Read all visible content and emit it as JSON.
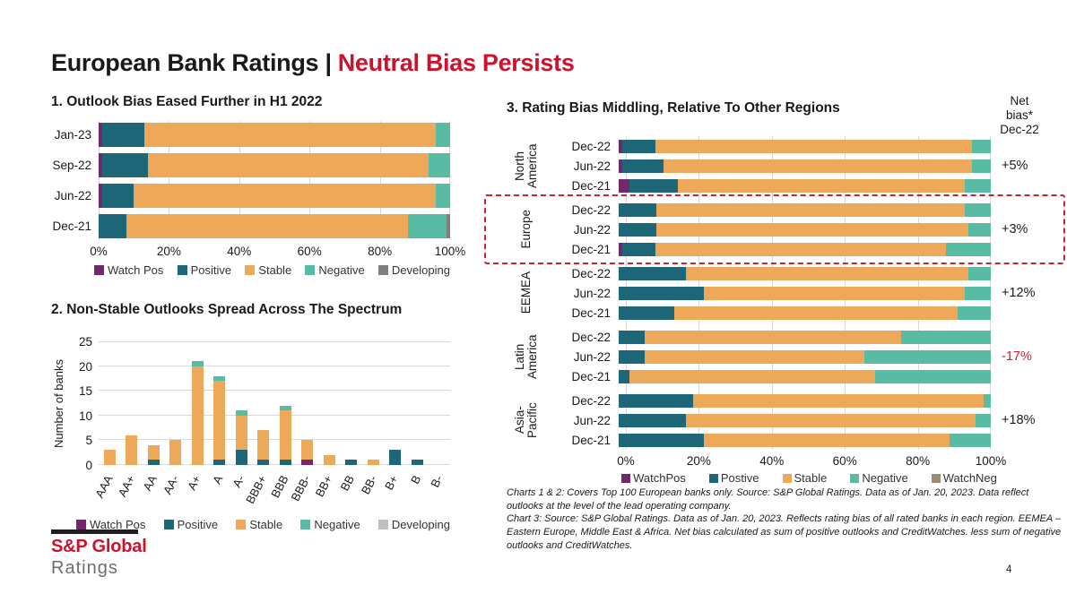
{
  "page": {
    "title_black": "European Bank Ratings |",
    "title_accent": "Neutral Bias Persists",
    "page_number": "4"
  },
  "colors": {
    "watch_pos": "#73286B",
    "positive": "#1E6779",
    "stable": "#EEA85A",
    "negative": "#5ABBA4",
    "developing": "#7F7F7F",
    "developing_light": "#BFBFBF",
    "watch_neg": "#9C8B72",
    "grid": "#D9D9D9",
    "accent_red": "#C9232D",
    "brand_red": "#D0112B"
  },
  "chart_data": [
    {
      "type": "bar",
      "orientation": "horizontal-stacked-100pct",
      "title": "1. Outlook Bias Eased Further in H1 2022",
      "categories": [
        "Jan-23",
        "Sep-22",
        "Jun-22",
        "Dec-21"
      ],
      "series": [
        {
          "name": "Watch Pos",
          "color_key": "watch_pos",
          "values": [
            1,
            1,
            1,
            0
          ]
        },
        {
          "name": "Positive",
          "color_key": "positive",
          "values": [
            12,
            13,
            9,
            8
          ]
        },
        {
          "name": "Stable",
          "color_key": "stable",
          "values": [
            83,
            80,
            86,
            80
          ]
        },
        {
          "name": "Negative",
          "color_key": "negative",
          "values": [
            4,
            6,
            4,
            11
          ]
        },
        {
          "name": "Developing",
          "color_key": "developing",
          "values": [
            0,
            0,
            0,
            1
          ]
        }
      ],
      "x_ticks": [
        "0%",
        "20%",
        "40%",
        "60%",
        "80%",
        "100%"
      ],
      "xlim": [
        0,
        100
      ],
      "grid": "vertical, every 20%",
      "legend_position": "bottom",
      "legend": [
        {
          "label": "Watch Pos",
          "color_key": "watch_pos"
        },
        {
          "label": "Positive",
          "color_key": "positive"
        },
        {
          "label": "Stable",
          "color_key": "stable"
        },
        {
          "label": "Negative",
          "color_key": "negative"
        },
        {
          "label": "Developing",
          "color_key": "developing"
        }
      ]
    },
    {
      "type": "bar",
      "orientation": "vertical-stacked",
      "title": "2. Non-Stable Outlooks Spread Across The Spectrum",
      "ylabel": "Number of banks",
      "y_ticks": [
        0,
        5,
        10,
        15,
        20,
        25
      ],
      "ylim": [
        0,
        25
      ],
      "categories": [
        "AAA",
        "AA+",
        "AA",
        "AA-",
        "A+",
        "A",
        "A-",
        "BBB+",
        "BBB",
        "BBB-",
        "BB+",
        "BB",
        "BB-",
        "B+",
        "B",
        "B-"
      ],
      "series": [
        {
          "name": "Watch Pos",
          "color_key": "watch_pos",
          "values": [
            0,
            0,
            0,
            0,
            0,
            0,
            0,
            0,
            0,
            1,
            0,
            0,
            0,
            0,
            0,
            0
          ]
        },
        {
          "name": "Positive",
          "color_key": "positive",
          "values": [
            0,
            0,
            1,
            0,
            0,
            1,
            3,
            1,
            1,
            0,
            0,
            1,
            0,
            3,
            1,
            0
          ]
        },
        {
          "name": "Stable",
          "color_key": "stable",
          "values": [
            3,
            6,
            3,
            5,
            20,
            16,
            7,
            6,
            10,
            4,
            2,
            0,
            1,
            0,
            0,
            0
          ]
        },
        {
          "name": "Negative",
          "color_key": "negative",
          "values": [
            0,
            0,
            0,
            0,
            1,
            1,
            1,
            0,
            1,
            0,
            0,
            0,
            0,
            0,
            0,
            0
          ]
        },
        {
          "name": "Developing",
          "color_key": "developing_light",
          "values": [
            0,
            0,
            0,
            0,
            0,
            0,
            0,
            0,
            0,
            0,
            0,
            0,
            0,
            0,
            0,
            0
          ]
        }
      ],
      "grid": "horizontal, every 5",
      "legend_position": "bottom",
      "legend": [
        {
          "label": "Watch Pos",
          "color_key": "watch_pos"
        },
        {
          "label": "Positive",
          "color_key": "positive"
        },
        {
          "label": "Stable",
          "color_key": "stable"
        },
        {
          "label": "Negative",
          "color_key": "negative"
        },
        {
          "label": "Developing",
          "color_key": "developing_light"
        }
      ]
    },
    {
      "type": "bar",
      "orientation": "horizontal-stacked-100pct",
      "title": "3. Rating Bias Middling, Relative To Other Regions",
      "net_bias_header": [
        "Net",
        "bias*",
        "Dec-22"
      ],
      "series": [
        {
          "name": "WatchPos",
          "color_key": "watch_pos"
        },
        {
          "name": "Postive",
          "color_key": "positive"
        },
        {
          "name": "Stable",
          "color_key": "stable"
        },
        {
          "name": "Negative",
          "color_key": "negative"
        },
        {
          "name": "WatchNeg",
          "color_key": "watch_neg"
        }
      ],
      "groups": [
        {
          "region": "North America",
          "net_bias": "+5%",
          "net_bias_negative": false,
          "highlighted": false,
          "rows": [
            {
              "label": "Dec-22",
              "values": [
                1,
                9,
                85,
                5,
                0
              ]
            },
            {
              "label": "Jun-22",
              "values": [
                1,
                11,
                83,
                5,
                0
              ]
            },
            {
              "label": "Dec-21",
              "values": [
                3,
                13,
                77,
                7,
                0
              ]
            }
          ]
        },
        {
          "region": "Europe",
          "net_bias": "+3%",
          "net_bias_negative": false,
          "highlighted": true,
          "rows": [
            {
              "label": "Dec-22",
              "values": [
                0,
                10,
                83,
                7,
                0
              ]
            },
            {
              "label": "Jun-22",
              "values": [
                0,
                10,
                84,
                6,
                0
              ]
            },
            {
              "label": "Dec-21",
              "values": [
                1,
                9,
                78,
                12,
                0
              ]
            }
          ]
        },
        {
          "region": "EEMEA",
          "net_bias": "+12%",
          "net_bias_negative": false,
          "highlighted": false,
          "rows": [
            {
              "label": "Dec-22",
              "values": [
                0,
                18,
                76,
                6,
                0
              ]
            },
            {
              "label": "Jun-22",
              "values": [
                0,
                23,
                70,
                7,
                0
              ]
            },
            {
              "label": "Dec-21",
              "values": [
                0,
                15,
                76,
                9,
                0
              ]
            }
          ]
        },
        {
          "region": "Latin America",
          "net_bias": "-17%",
          "net_bias_negative": true,
          "highlighted": false,
          "rows": [
            {
              "label": "Dec-22",
              "values": [
                0,
                7,
                69,
                24,
                0
              ]
            },
            {
              "label": "Jun-22",
              "values": [
                0,
                7,
                59,
                34,
                0
              ]
            },
            {
              "label": "Dec-21",
              "values": [
                0,
                3,
                66,
                31,
                0
              ]
            }
          ]
        },
        {
          "region": "Asia-Pacific",
          "net_bias": "+18%",
          "net_bias_negative": false,
          "highlighted": false,
          "rows": [
            {
              "label": "Dec-22",
              "values": [
                0,
                20,
                78,
                2,
                0
              ]
            },
            {
              "label": "Jun-22",
              "values": [
                0,
                18,
                78,
                4,
                0
              ]
            },
            {
              "label": "Dec-21",
              "values": [
                0,
                23,
                66,
                11,
                0
              ]
            }
          ]
        }
      ],
      "x_ticks": [
        "0%",
        "20%",
        "40%",
        "60%",
        "80%",
        "100%"
      ],
      "xlim": [
        0,
        100
      ],
      "grid": "vertical, every 20%",
      "legend_position": "bottom",
      "legend": [
        {
          "label": "WatchPos",
          "color_key": "watch_pos"
        },
        {
          "label": "Postive",
          "color_key": "positive"
        },
        {
          "label": "Stable",
          "color_key": "stable"
        },
        {
          "label": "Negative",
          "color_key": "negative"
        },
        {
          "label": "WatchNeg",
          "color_key": "watch_neg"
        }
      ]
    }
  ],
  "footnotes": [
    "Charts 1 & 2:  Covers Top 100 European banks only. Source: S&P Global Ratings.  Data as of Jan. 20, 2023.  Data reflect outlooks at the level of the lead operating company.",
    "Chart 3: Source: S&P Global Ratings. Data as of Jan. 20, 2023. Reflects rating bias of all rated banks in each region. EEMEA – Eastern Europe, Middle East & Africa. Net bias calculated as sum of positive outlooks and CreditWatches. less sum of negative outlooks and CreditWatches."
  ],
  "logo": {
    "brand": "S&P Global",
    "division": "Ratings"
  }
}
